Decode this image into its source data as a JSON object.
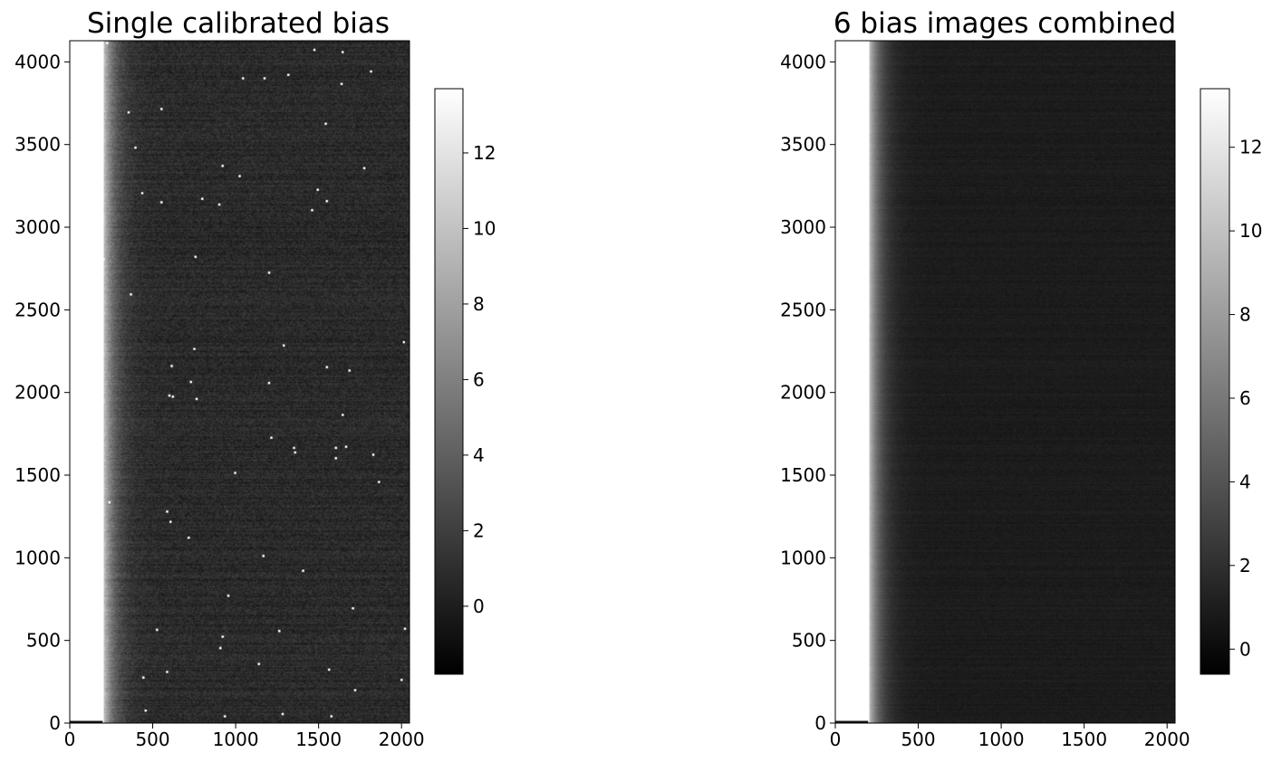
{
  "chart_data": [
    {
      "type": "heatmap",
      "title": "Single calibrated bias",
      "xlim": [
        0,
        2048
      ],
      "ylim": [
        0,
        4128
      ],
      "xticks": [
        0,
        500,
        1000,
        1500,
        2000
      ],
      "yticks": [
        0,
        500,
        1000,
        1500,
        2000,
        2500,
        3000,
        3500,
        4000
      ],
      "colormap": "gray",
      "colorbar": {
        "ticks": [
          0,
          2,
          4,
          6,
          8,
          10,
          12
        ],
        "range": [
          -1.8,
          13.7
        ]
      },
      "features": {
        "bright_overscan_edge_x": 200,
        "background_level": 0.6,
        "noise_level": "high",
        "hot_pixels": true
      }
    },
    {
      "type": "heatmap",
      "title": "6 bias images combined",
      "xlim": [
        0,
        2048
      ],
      "ylim": [
        0,
        4128
      ],
      "xticks": [
        0,
        500,
        1000,
        1500,
        2000
      ],
      "yticks": [
        0,
        500,
        1000,
        1500,
        2000,
        2500,
        3000,
        3500,
        4000
      ],
      "colormap": "gray",
      "colorbar": {
        "ticks": [
          0,
          2,
          4,
          6,
          8,
          10,
          12
        ],
        "range": [
          -0.6,
          13.4
        ]
      },
      "features": {
        "bright_overscan_edge_x": 200,
        "background_level": 0.5,
        "noise_level": "low",
        "hot_pixels": false
      }
    }
  ]
}
